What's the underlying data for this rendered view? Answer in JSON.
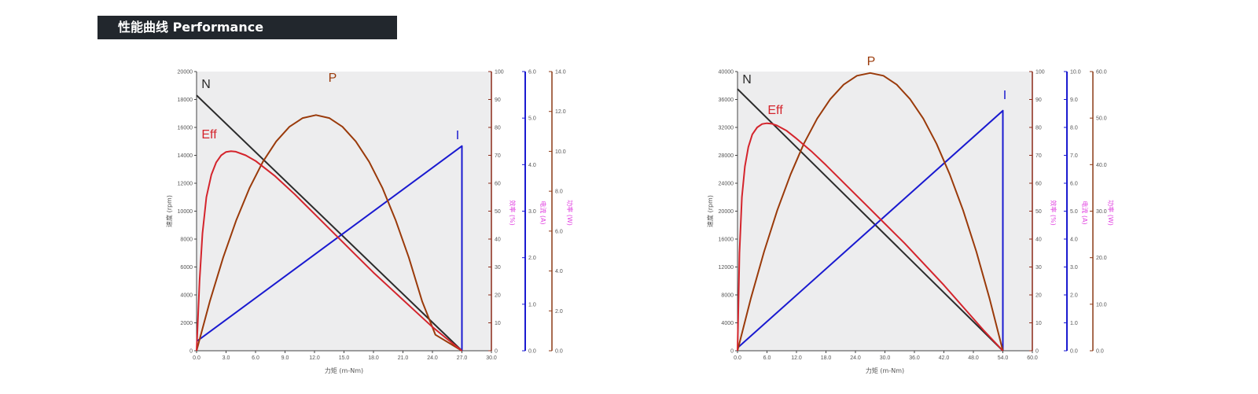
{
  "section": {
    "title": "性能曲线 Performance"
  },
  "colors": {
    "N": "#2b2b2b",
    "Eff": "#d4242c",
    "P": "#9a3a0a",
    "I": "#1a1ad0",
    "plot_bg": "#ededee",
    "axis_eff": "#8b2a18",
    "axis_i": "#1a1ad0",
    "axis_p": "#8b3a16",
    "pink": "#e040e0"
  },
  "chart_data": [
    {
      "type": "line",
      "xlabel": "力矩 (m-Nm)",
      "ylabel": "速度 (rpm)",
      "right_axis_labels": [
        "效率 (%)",
        "电流 (A)",
        "功率 (W)"
      ],
      "x_ticks": [
        "0.0",
        "3.0",
        "6.0",
        "9.0",
        "12.0",
        "15.0",
        "18.0",
        "21.0",
        "24.0",
        "27.0",
        "30.0"
      ],
      "xlim": [
        0,
        30
      ],
      "speed_ticks": [
        "0",
        "2000",
        "4000",
        "6000",
        "8000",
        "10000",
        "12000",
        "14000",
        "16000",
        "18000",
        "20000"
      ],
      "speed_lim": [
        0,
        20000
      ],
      "eff_ticks": [
        "0",
        "10",
        "20",
        "30",
        "40",
        "50",
        "60",
        "70",
        "80",
        "90",
        "100"
      ],
      "eff_lim": [
        0,
        100
      ],
      "current_ticks": [
        "0.0",
        "1.0",
        "2.0",
        "3.0",
        "4.0",
        "5.0",
        "6.0"
      ],
      "current_lim": [
        0,
        6
      ],
      "power_ticks": [
        "0.0",
        "2.0",
        "4.0",
        "6.0",
        "8.0",
        "10.0",
        "12.0",
        "14.0"
      ],
      "power_lim": [
        0,
        14
      ],
      "series": [
        {
          "name": "N",
          "axis": "speed",
          "points": [
            [
              0,
              18300
            ],
            [
              27,
              0
            ]
          ]
        },
        {
          "name": "I",
          "axis": "current",
          "points": [
            [
              0,
              0.2
            ],
            [
              27,
              4.4
            ],
            [
              27,
              0
            ]
          ]
        },
        {
          "name": "P",
          "axis": "power",
          "points": [
            [
              0,
              0
            ],
            [
              1.35,
              2.48
            ],
            [
              2.7,
              4.67
            ],
            [
              4.05,
              6.56
            ],
            [
              5.4,
              8.17
            ],
            [
              6.75,
              9.48
            ],
            [
              8.1,
              10.5
            ],
            [
              9.45,
              11.23
            ],
            [
              10.8,
              11.67
            ],
            [
              12.15,
              11.82
            ],
            [
              13.5,
              11.67
            ],
            [
              14.85,
              11.23
            ],
            [
              16.2,
              10.5
            ],
            [
              17.55,
              9.48
            ],
            [
              18.9,
              8.17
            ],
            [
              20.25,
              6.56
            ],
            [
              21.6,
              4.67
            ],
            [
              22.95,
              2.48
            ],
            [
              24.3,
              0.8
            ],
            [
              27,
              0
            ]
          ]
        },
        {
          "name": "Eff",
          "axis": "eff",
          "points": [
            [
              0,
              0
            ],
            [
              0.3,
              25
            ],
            [
              0.6,
              42
            ],
            [
              1,
              55
            ],
            [
              1.5,
              63
            ],
            [
              2,
              67.5
            ],
            [
              2.5,
              70
            ],
            [
              3,
              71.2
            ],
            [
              3.5,
              71.5
            ],
            [
              4,
              71.3
            ],
            [
              5,
              70
            ],
            [
              6,
              68
            ],
            [
              8,
              62.5
            ],
            [
              10,
              56
            ],
            [
              12,
              49
            ],
            [
              14,
              42
            ],
            [
              16,
              35
            ],
            [
              18,
              28
            ],
            [
              20,
              21.5
            ],
            [
              22,
              15
            ],
            [
              24,
              8.5
            ],
            [
              26,
              2.8
            ],
            [
              27,
              0
            ]
          ]
        }
      ]
    },
    {
      "type": "line",
      "xlabel": "力矩 (m-Nm)",
      "ylabel": "速度 (rpm)",
      "right_axis_labels": [
        "效率 (%)",
        "电流 (A)",
        "功率 (W)"
      ],
      "x_ticks": [
        "0.0",
        "6.0",
        "12.0",
        "18.0",
        "24.0",
        "30.0",
        "36.0",
        "42.0",
        "48.0",
        "54.0",
        "60.0"
      ],
      "xlim": [
        0,
        60
      ],
      "speed_ticks": [
        "0",
        "4000",
        "8000",
        "12000",
        "16000",
        "20000",
        "24000",
        "28000",
        "32000",
        "36000",
        "40000"
      ],
      "speed_lim": [
        0,
        40000
      ],
      "eff_ticks": [
        "0",
        "10",
        "20",
        "30",
        "40",
        "50",
        "60",
        "70",
        "80",
        "90",
        "100"
      ],
      "eff_lim": [
        0,
        100
      ],
      "current_ticks": [
        "0.0",
        "1.0",
        "2.0",
        "3.0",
        "4.0",
        "5.0",
        "6.0",
        "7.0",
        "8.0",
        "9.0",
        "10.0"
      ],
      "current_lim": [
        0,
        10
      ],
      "power_ticks": [
        "0.0",
        "10.0",
        "20.0",
        "30.0",
        "40.0",
        "50.0",
        "60.0"
      ],
      "power_lim": [
        0,
        60
      ],
      "series": [
        {
          "name": "N",
          "axis": "speed",
          "points": [
            [
              0,
              37500
            ],
            [
              54,
              0
            ]
          ]
        },
        {
          "name": "I",
          "axis": "current",
          "points": [
            [
              0,
              0.1
            ],
            [
              54,
              8.6
            ],
            [
              54,
              0
            ]
          ]
        },
        {
          "name": "P",
          "axis": "power",
          "points": [
            [
              0,
              0
            ],
            [
              2.7,
              11.2
            ],
            [
              5.4,
              21.3
            ],
            [
              8.1,
              30.2
            ],
            [
              10.8,
              37.9
            ],
            [
              13.5,
              44.5
            ],
            [
              16.2,
              49.9
            ],
            [
              18.9,
              54.1
            ],
            [
              21.6,
              57.2
            ],
            [
              24.3,
              59.1
            ],
            [
              27,
              59.7
            ],
            [
              29.7,
              59.1
            ],
            [
              32.4,
              57.2
            ],
            [
              35.1,
              54.1
            ],
            [
              37.8,
              49.9
            ],
            [
              40.5,
              44.5
            ],
            [
              43.2,
              37.9
            ],
            [
              45.9,
              30.2
            ],
            [
              48.6,
              21.3
            ],
            [
              51.3,
              11.2
            ],
            [
              54,
              0
            ]
          ]
        },
        {
          "name": "Eff",
          "axis": "eff",
          "points": [
            [
              0,
              0
            ],
            [
              0.4,
              35
            ],
            [
              0.9,
              55
            ],
            [
              1.5,
              66
            ],
            [
              2.2,
              73
            ],
            [
              3,
              77.5
            ],
            [
              4,
              80
            ],
            [
              5,
              81.2
            ],
            [
              6,
              81.5
            ],
            [
              7,
              81.3
            ],
            [
              8,
              80.7
            ],
            [
              10,
              78.8
            ],
            [
              12,
              76
            ],
            [
              15,
              71.5
            ],
            [
              18,
              66.5
            ],
            [
              22,
              59.5
            ],
            [
              26,
              52.5
            ],
            [
              30,
              45.5
            ],
            [
              34,
              38.5
            ],
            [
              38,
              31
            ],
            [
              42,
              23.5
            ],
            [
              46,
              15.5
            ],
            [
              50,
              7.5
            ],
            [
              54,
              0
            ]
          ]
        }
      ]
    }
  ]
}
